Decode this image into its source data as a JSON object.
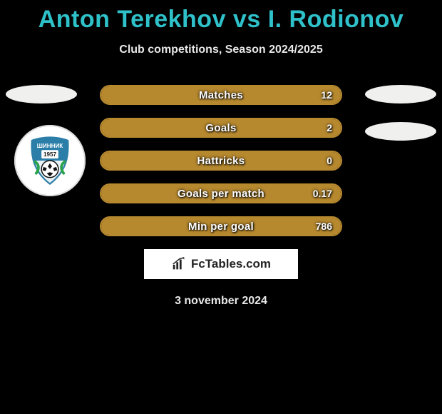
{
  "title": "Anton Terekhov vs I. Rodionov",
  "subtitle": "Club competitions, Season 2024/2025",
  "date": "3 november 2024",
  "brand": "FcTables.com",
  "colors": {
    "accent_title": "#2fc1c9",
    "bar_border": "#b7892f",
    "bar_fill": "#b7892f",
    "background": "#000000",
    "text": "#e8e8e8",
    "ellipse": "#f0f0ee"
  },
  "crest_text": "ШИННИК",
  "crest_year": "1957",
  "ellipse_rows": [
    0,
    1
  ],
  "bars": [
    {
      "label": "Matches",
      "value": "12",
      "fill_pct": 100
    },
    {
      "label": "Goals",
      "value": "2",
      "fill_pct": 100
    },
    {
      "label": "Hattricks",
      "value": "0",
      "fill_pct": 100
    },
    {
      "label": "Goals per match",
      "value": "0.17",
      "fill_pct": 100
    },
    {
      "label": "Min per goal",
      "value": "786",
      "fill_pct": 100
    }
  ]
}
